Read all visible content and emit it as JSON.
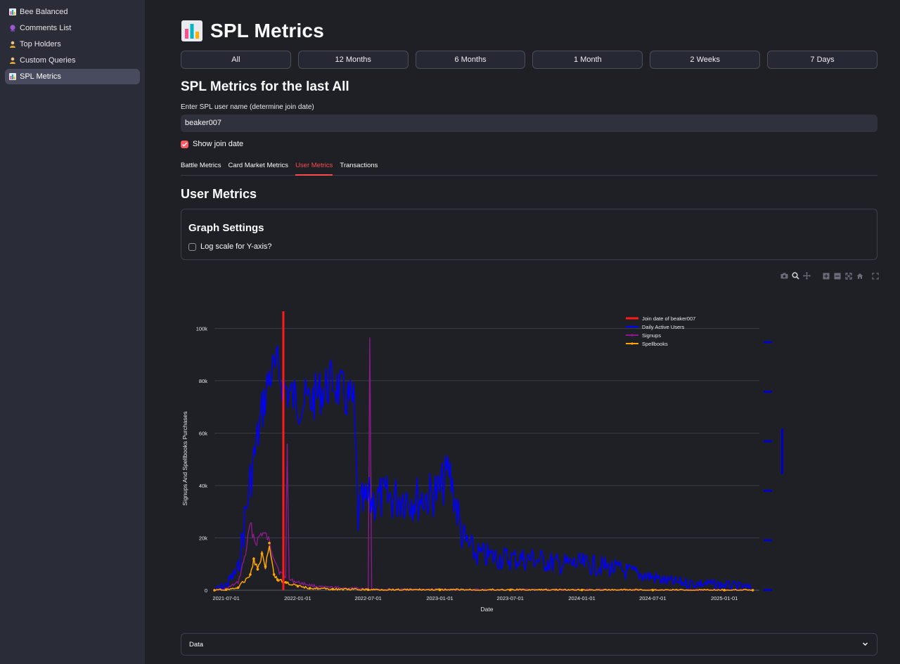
{
  "sidebar": {
    "items": [
      {
        "label": "Bee Balanced",
        "icon": "bar-chart-icon",
        "active": false
      },
      {
        "label": "Comments List",
        "icon": "crystal-ball-icon",
        "active": false
      },
      {
        "label": "Top Holders",
        "icon": "person-icon",
        "active": false
      },
      {
        "label": "Custom Queries",
        "icon": "person-icon",
        "active": false
      },
      {
        "label": "SPL Metrics",
        "icon": "bar-chart-icon",
        "active": true
      }
    ]
  },
  "header": {
    "title": "SPL Metrics",
    "icon": "bar-chart-icon"
  },
  "periods": [
    "All",
    "12 Months",
    "6 Months",
    "1 Month",
    "2 Weeks",
    "7 Days"
  ],
  "subheading": "SPL Metrics for the last All",
  "user_input": {
    "label": "Enter SPL user name (determine join date)",
    "value": "beaker007"
  },
  "show_join": {
    "label": "Show join date",
    "checked": true
  },
  "tabs": [
    {
      "label": "Battle Metrics",
      "active": false
    },
    {
      "label": "Card Market Metrics",
      "active": false
    },
    {
      "label": "User Metrics",
      "active": true
    },
    {
      "label": "Transactions",
      "active": false
    }
  ],
  "section_title": "User Metrics",
  "graph_settings": {
    "title": "Graph Settings",
    "log_label": "Log scale for Y-axis?",
    "log_checked": false
  },
  "toolbar": [
    "camera-icon",
    "zoom-icon",
    "pan-icon",
    "zoom-in-icon",
    "zoom-out-icon",
    "autoscale-icon",
    "home-icon",
    "fullscreen-icon"
  ],
  "colors": {
    "accent": "#ff4b4b",
    "join": "#ff1a1a",
    "dau": "#0000ff",
    "signups": "#8b1a8b",
    "spellbooks": "#ffa500"
  },
  "chart_data": {
    "type": "line",
    "xlabel": "Date",
    "ylabel": "Signups And Spellbooks  Purchases",
    "ylim": [
      0,
      106000
    ],
    "y_ticks": [
      0,
      20000,
      40000,
      60000,
      80000,
      100000
    ],
    "y_tick_labels": [
      "0",
      "20k",
      "40k",
      "60k",
      "80k",
      "100k"
    ],
    "x_range": [
      "2021-06-01",
      "2025-04-01"
    ],
    "x_ticks": [
      "2021-07-01",
      "2022-01-01",
      "2022-07-01",
      "2023-01-01",
      "2023-07-01",
      "2024-01-01",
      "2024-07-01",
      "2025-01-01"
    ],
    "grid": true,
    "legend_placement": "top-right",
    "join_date": "2021-11-25",
    "series": [
      {
        "name": "Join date of beaker007",
        "kind": "join"
      },
      {
        "name": "Daily Active Users",
        "kind": "dau",
        "x": [
          "2021-06-01",
          "2021-07-01",
          "2021-08-01",
          "2021-09-01",
          "2021-10-01",
          "2021-10-20",
          "2021-11-10",
          "2021-12-01",
          "2022-01-01",
          "2022-02-01",
          "2022-03-01",
          "2022-04-01",
          "2022-05-01",
          "2022-05-25",
          "2022-06-05",
          "2022-06-15",
          "2022-07-01",
          "2022-08-01",
          "2022-09-01",
          "2022-10-01",
          "2022-11-01",
          "2022-12-01",
          "2023-01-01",
          "2023-01-25",
          "2023-03-01",
          "2023-04-01",
          "2023-05-01",
          "2023-07-01",
          "2023-09-01",
          "2023-11-01",
          "2024-01-01",
          "2024-03-01",
          "2024-05-01",
          "2024-07-01",
          "2024-08-01",
          "2024-09-01",
          "2024-11-01",
          "2025-01-01",
          "2025-02-01",
          "2025-03-01",
          "2025-03-15"
        ],
        "y": [
          0,
          2000,
          8000,
          42000,
          68000,
          82000,
          85000,
          77000,
          72000,
          72000,
          76000,
          80000,
          74000,
          71000,
          28000,
          32000,
          34000,
          35000,
          35000,
          36000,
          35000,
          36000,
          38000,
          46000,
          20000,
          14000,
          13000,
          12000,
          12000,
          10000,
          10000,
          9000,
          7000,
          5000,
          3500,
          3000,
          2500,
          2000,
          1500,
          1000,
          500
        ]
      },
      {
        "name": "Signups",
        "kind": "signups",
        "x": [
          "2021-06-01",
          "2021-07-01",
          "2021-08-01",
          "2021-08-20",
          "2021-09-01",
          "2021-09-15",
          "2021-10-01",
          "2021-10-15",
          "2021-11-01",
          "2021-11-15",
          "2021-12-01",
          "2021-12-05",
          "2021-12-10",
          "2022-01-01",
          "2022-02-01",
          "2022-03-01",
          "2022-05-01",
          "2022-07-01",
          "2022-07-05",
          "2022-07-10",
          "2022-09-01",
          "2023-01-01",
          "2023-07-01",
          "2024-01-01",
          "2024-07-01",
          "2025-01-01",
          "2025-03-15"
        ],
        "y": [
          0,
          500,
          3000,
          14000,
          25000,
          18000,
          22000,
          20000,
          13000,
          7000,
          5000,
          58000,
          4000,
          3000,
          2000,
          1200,
          800,
          500,
          97000,
          400,
          300,
          200,
          150,
          100,
          80,
          50,
          30
        ]
      },
      {
        "name": "Spellbooks",
        "kind": "spellbooks",
        "x": [
          "2021-06-01",
          "2021-07-01",
          "2021-08-01",
          "2021-09-01",
          "2021-09-10",
          "2021-09-20",
          "2021-10-01",
          "2021-10-10",
          "2021-10-20",
          "2021-11-01",
          "2021-11-10",
          "2021-12-01",
          "2022-01-01",
          "2022-02-01",
          "2022-04-01",
          "2022-07-01",
          "2023-01-01",
          "2023-07-01",
          "2024-01-01",
          "2024-07-01",
          "2025-01-01",
          "2025-03-15"
        ],
        "y": [
          0,
          200,
          1000,
          6000,
          12000,
          8000,
          14000,
          9000,
          18000,
          6000,
          4000,
          3000,
          1500,
          800,
          400,
          200,
          150,
          100,
          80,
          60,
          40,
          20
        ]
      }
    ]
  }
}
